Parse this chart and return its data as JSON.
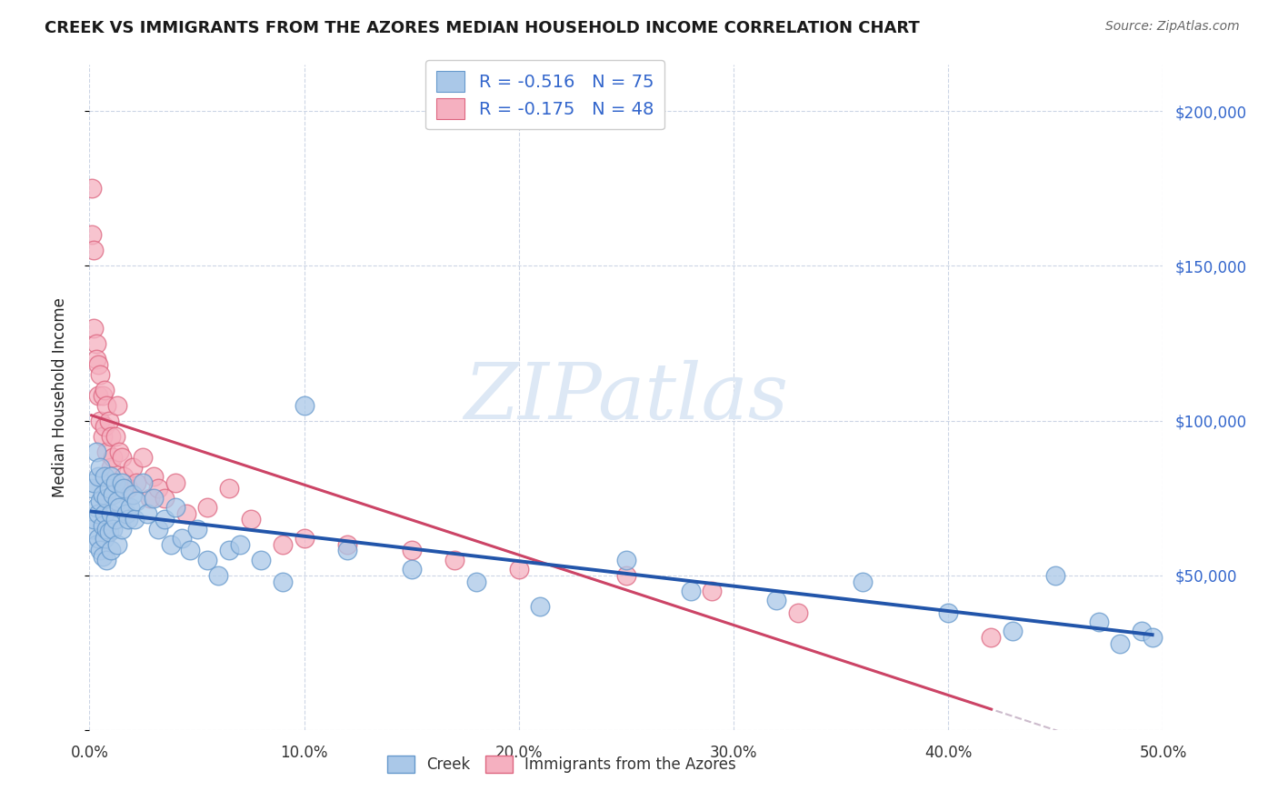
{
  "title": "CREEK VS IMMIGRANTS FROM THE AZORES MEDIAN HOUSEHOLD INCOME CORRELATION CHART",
  "source": "Source: ZipAtlas.com",
  "ylabel": "Median Household Income",
  "creek_R": "-0.516",
  "creek_N": "75",
  "azores_R": "-0.175",
  "azores_N": "48",
  "creek_color": "#aac8e8",
  "creek_edge_color": "#6699cc",
  "creek_line_color": "#2255aa",
  "azores_color": "#f5b0c0",
  "azores_edge_color": "#dd6680",
  "azores_line_color": "#cc4466",
  "dash_color": "#ccbbcc",
  "watermark_text": "ZIPatlas",
  "watermark_color": "#dde8f5",
  "xlim": [
    0.0,
    0.5
  ],
  "ylim": [
    0,
    215000
  ],
  "y_ticks": [
    0,
    50000,
    100000,
    150000,
    200000
  ],
  "y_labels": [
    "",
    "$50,000",
    "$100,000",
    "$150,000",
    "$200,000"
  ],
  "x_ticks": [
    0.0,
    0.1,
    0.2,
    0.3,
    0.4,
    0.5
  ],
  "x_labels": [
    "0.0%",
    "10.0%",
    "20.0%",
    "30.0%",
    "40.0%",
    "50.0%"
  ],
  "legend_color": "#3366cc",
  "creek_x": [
    0.001,
    0.001,
    0.002,
    0.002,
    0.003,
    0.003,
    0.003,
    0.004,
    0.004,
    0.004,
    0.005,
    0.005,
    0.005,
    0.006,
    0.006,
    0.006,
    0.007,
    0.007,
    0.007,
    0.008,
    0.008,
    0.008,
    0.009,
    0.009,
    0.01,
    0.01,
    0.01,
    0.011,
    0.011,
    0.012,
    0.012,
    0.013,
    0.013,
    0.014,
    0.015,
    0.015,
    0.016,
    0.017,
    0.018,
    0.019,
    0.02,
    0.021,
    0.022,
    0.025,
    0.027,
    0.03,
    0.032,
    0.035,
    0.038,
    0.04,
    0.043,
    0.047,
    0.05,
    0.055,
    0.06,
    0.065,
    0.07,
    0.08,
    0.09,
    0.1,
    0.12,
    0.15,
    0.18,
    0.21,
    0.25,
    0.28,
    0.32,
    0.36,
    0.4,
    0.43,
    0.45,
    0.47,
    0.48,
    0.49,
    0.495
  ],
  "creek_y": [
    78000,
    65000,
    80000,
    68000,
    90000,
    72000,
    60000,
    82000,
    70000,
    62000,
    85000,
    74000,
    58000,
    76000,
    66000,
    56000,
    82000,
    70000,
    62000,
    75000,
    65000,
    55000,
    78000,
    64000,
    82000,
    70000,
    58000,
    76000,
    65000,
    80000,
    68000,
    74000,
    60000,
    72000,
    80000,
    65000,
    78000,
    70000,
    68000,
    72000,
    76000,
    68000,
    74000,
    80000,
    70000,
    75000,
    65000,
    68000,
    60000,
    72000,
    62000,
    58000,
    65000,
    55000,
    50000,
    58000,
    60000,
    55000,
    48000,
    105000,
    58000,
    52000,
    48000,
    40000,
    55000,
    45000,
    42000,
    48000,
    38000,
    32000,
    50000,
    35000,
    28000,
    32000,
    30000
  ],
  "azores_x": [
    0.001,
    0.001,
    0.002,
    0.002,
    0.003,
    0.003,
    0.004,
    0.004,
    0.005,
    0.005,
    0.006,
    0.006,
    0.007,
    0.007,
    0.008,
    0.008,
    0.009,
    0.01,
    0.01,
    0.011,
    0.012,
    0.013,
    0.014,
    0.015,
    0.016,
    0.018,
    0.02,
    0.022,
    0.025,
    0.028,
    0.03,
    0.032,
    0.035,
    0.04,
    0.045,
    0.055,
    0.065,
    0.075,
    0.09,
    0.1,
    0.12,
    0.15,
    0.17,
    0.2,
    0.25,
    0.29,
    0.33,
    0.42
  ],
  "azores_y": [
    175000,
    160000,
    155000,
    130000,
    125000,
    120000,
    118000,
    108000,
    115000,
    100000,
    108000,
    95000,
    110000,
    98000,
    105000,
    90000,
    100000,
    95000,
    85000,
    88000,
    95000,
    105000,
    90000,
    88000,
    82000,
    78000,
    85000,
    80000,
    88000,
    75000,
    82000,
    78000,
    75000,
    80000,
    70000,
    72000,
    78000,
    68000,
    60000,
    62000,
    60000,
    58000,
    55000,
    52000,
    50000,
    45000,
    38000,
    30000
  ]
}
